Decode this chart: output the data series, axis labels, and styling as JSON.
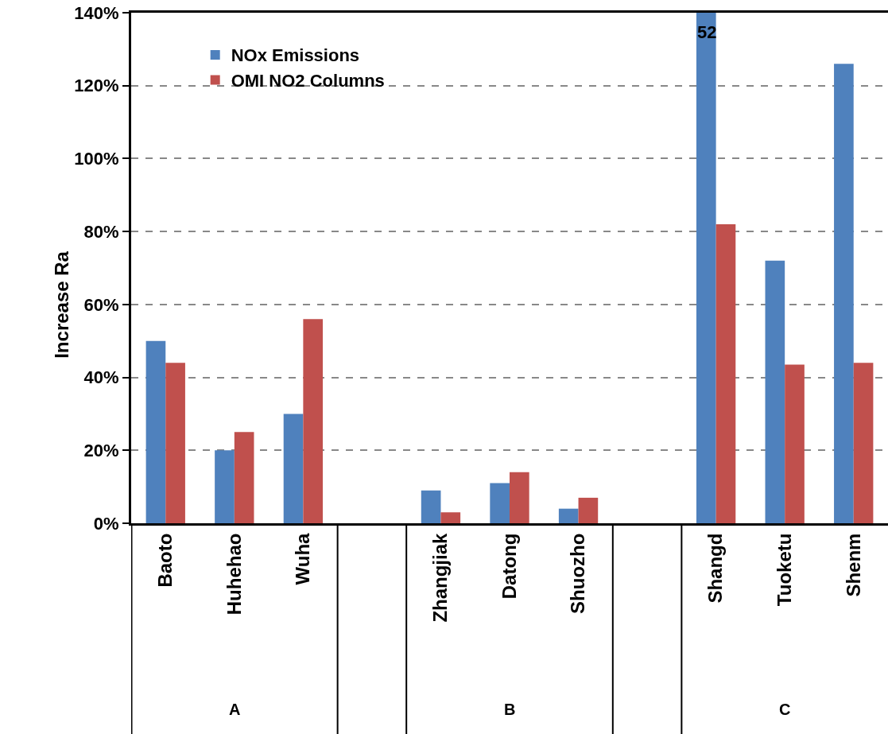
{
  "chart_data": {
    "type": "bar",
    "ylabel": "Increase Ra",
    "categories": [
      "Baoto",
      "Huhehao",
      "Wuha",
      null,
      "Zhangjiak",
      "Datong",
      "Shuozho",
      null,
      "Shangd",
      "Tuoketu",
      "Shenm"
    ],
    "series": [
      {
        "name": "NOx Emissions",
        "color": "#4f81bd",
        "values": [
          50,
          20,
          30,
          null,
          9,
          11,
          4,
          null,
          140,
          72,
          126
        ]
      },
      {
        "name": "OMI NO2 Columns",
        "color": "#c0504d",
        "values": [
          44,
          25,
          56,
          null,
          3,
          14,
          7,
          null,
          82,
          43.5,
          44
        ]
      }
    ],
    "ylim": [
      0,
      140
    ],
    "yticks": [
      {
        "value": 0,
        "label": "0%"
      },
      {
        "value": 20,
        "label": "20%"
      },
      {
        "value": 40,
        "label": "40%"
      },
      {
        "value": 60,
        "label": "60%"
      },
      {
        "value": 80,
        "label": "80%"
      },
      {
        "value": 100,
        "label": "100%"
      },
      {
        "value": 120,
        "label": "120%"
      },
      {
        "value": 140,
        "label": "140%"
      }
    ],
    "annotations": [
      {
        "text": "52",
        "x": "Shangd",
        "y": 140
      },
      "A",
      "B",
      "C"
    ],
    "grid": "y",
    "legend": "top left"
  }
}
